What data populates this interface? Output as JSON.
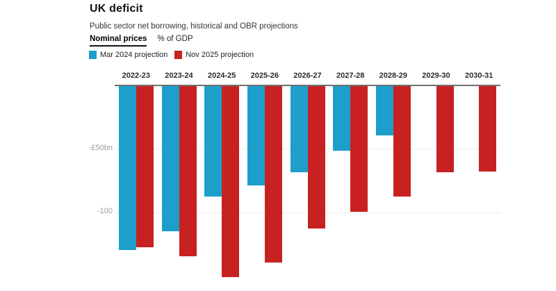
{
  "header": {
    "title": "UK deficit",
    "subtitle": "Public sector net borrowing, historical and OBR projections"
  },
  "tabs": [
    {
      "label": "Nominal prices",
      "active": true
    },
    {
      "label": "% of GDP",
      "active": false
    }
  ],
  "legend": [
    {
      "label": "Mar 2024 projection",
      "color": "#1d9ecb"
    },
    {
      "label": "Nov 2025 projection",
      "color": "#c72221"
    }
  ],
  "chart_data": {
    "type": "bar",
    "title": "UK deficit",
    "subtitle": "Public sector net borrowing, historical and OBR projections",
    "unit": "£bn",
    "bar_direction": "down-from-zero",
    "categories": [
      "2022-23",
      "2023-24",
      "2024-25",
      "2025-26",
      "2026-27",
      "2027-28",
      "2028-29",
      "2029-30",
      "2030-31"
    ],
    "series": [
      {
        "name": "Mar 2024 projection",
        "color": "#1d9ecb",
        "values": [
          -129,
          -114,
          -87,
          -78,
          -68,
          -51,
          -39,
          null,
          null
        ]
      },
      {
        "name": "Nov 2025 projection",
        "color": "#c72221",
        "values": [
          -127,
          -134,
          -150,
          -139,
          -112,
          -99,
          -87,
          -68,
          -67
        ]
      }
    ],
    "ylim": [
      -160,
      0
    ],
    "yticks": [
      {
        "value": -50,
        "label": "-£50bn"
      },
      {
        "value": -100,
        "label": "-100"
      }
    ],
    "grid": true,
    "legend_position": "top"
  },
  "colors": {
    "axis_line": "#6f6f6f",
    "grid_line": "#ececec",
    "tick_label": "#9c9c9c",
    "category_label": "#2b2b2b"
  }
}
